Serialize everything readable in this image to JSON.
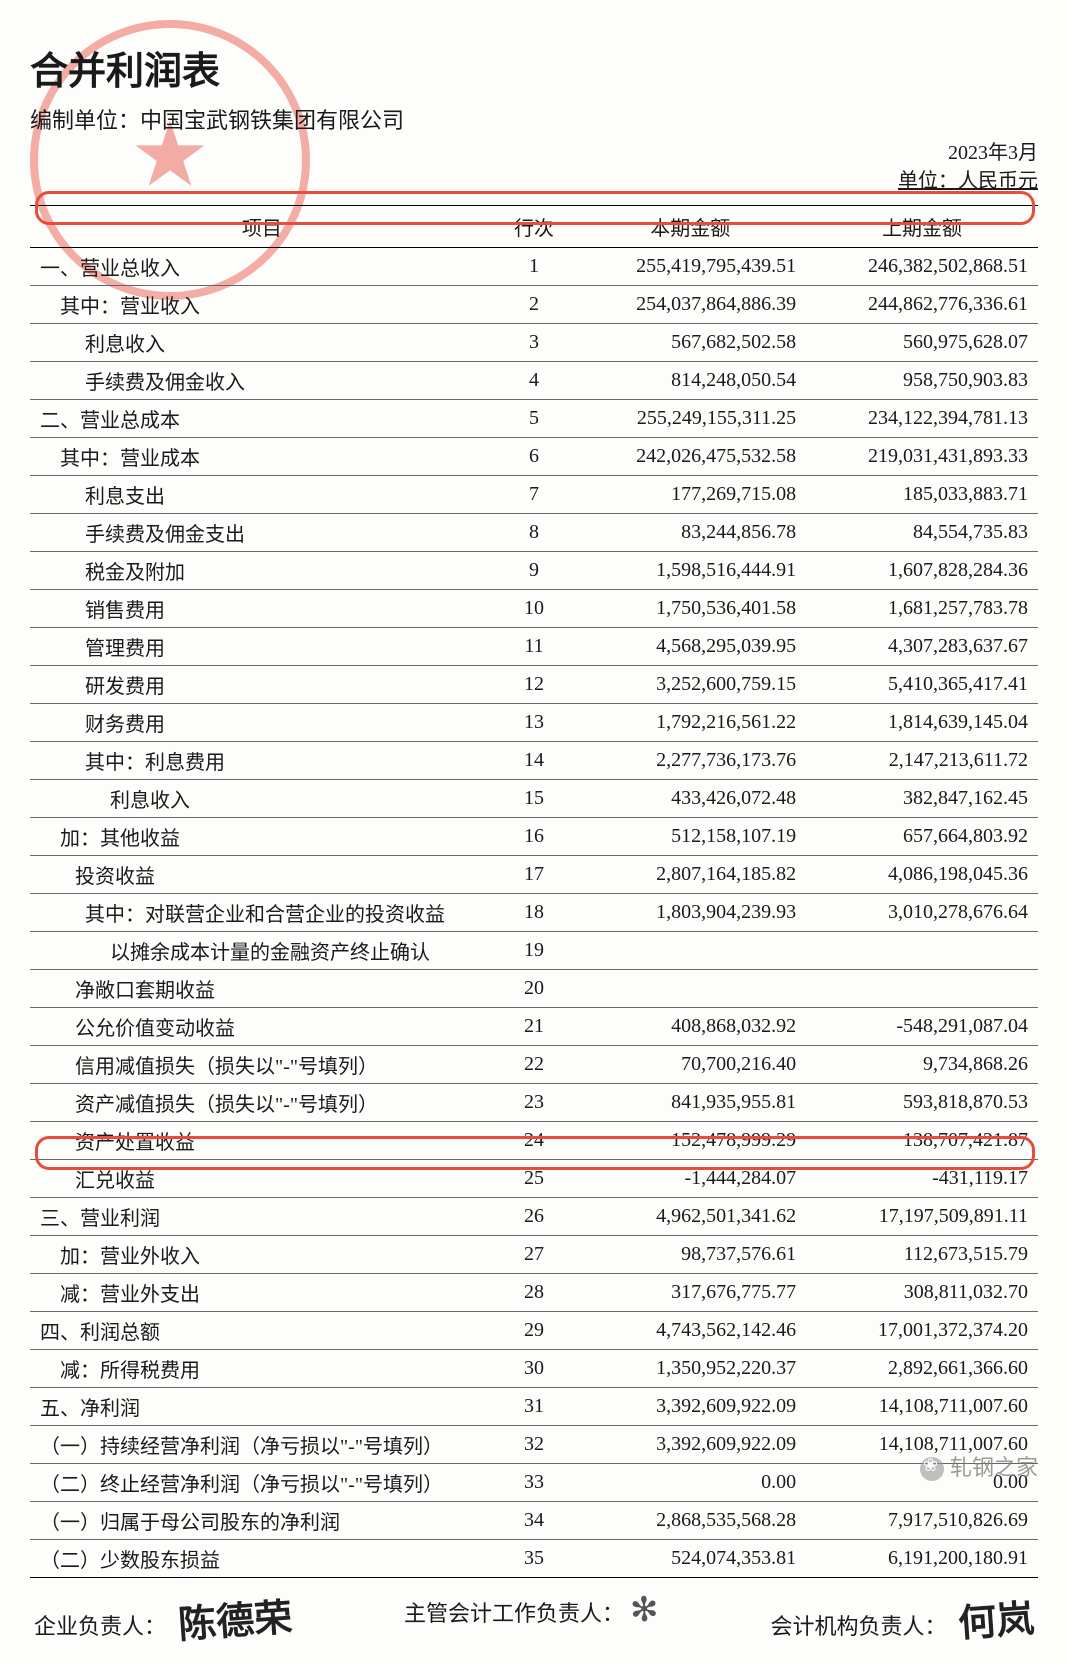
{
  "title": "合并利润表",
  "subtitle": "编制单位：中国宝武钢铁集团有限公司",
  "period": "2023年3月",
  "unit_label": "单位：人民币元",
  "columns": {
    "item": "项目",
    "row": "行次",
    "current": "本期金额",
    "prior": "上期金额"
  },
  "rows": [
    {
      "item": "一、营业总收入",
      "row": "1",
      "cur": "255,419,795,439.51",
      "prev": "246,382,502,868.51"
    },
    {
      "item": "    其中：营业收入",
      "row": "2",
      "cur": "254,037,864,886.39",
      "prev": "244,862,776,336.61"
    },
    {
      "item": "         利息收入",
      "row": "3",
      "cur": "567,682,502.58",
      "prev": "560,975,628.07"
    },
    {
      "item": "         手续费及佣金收入",
      "row": "4",
      "cur": "814,248,050.54",
      "prev": "958,750,903.83"
    },
    {
      "item": "二、营业总成本",
      "row": "5",
      "cur": "255,249,155,311.25",
      "prev": "234,122,394,781.13"
    },
    {
      "item": "    其中：营业成本",
      "row": "6",
      "cur": "242,026,475,532.58",
      "prev": "219,031,431,893.33"
    },
    {
      "item": "         利息支出",
      "row": "7",
      "cur": "177,269,715.08",
      "prev": "185,033,883.71"
    },
    {
      "item": "         手续费及佣金支出",
      "row": "8",
      "cur": "83,244,856.78",
      "prev": "84,554,735.83"
    },
    {
      "item": "         税金及附加",
      "row": "9",
      "cur": "1,598,516,444.91",
      "prev": "1,607,828,284.36"
    },
    {
      "item": "         销售费用",
      "row": "10",
      "cur": "1,750,536,401.58",
      "prev": "1,681,257,783.78"
    },
    {
      "item": "         管理费用",
      "row": "11",
      "cur": "4,568,295,039.95",
      "prev": "4,307,283,637.67"
    },
    {
      "item": "         研发费用",
      "row": "12",
      "cur": "3,252,600,759.15",
      "prev": "5,410,365,417.41"
    },
    {
      "item": "         财务费用",
      "row": "13",
      "cur": "1,792,216,561.22",
      "prev": "1,814,639,145.04"
    },
    {
      "item": "         其中：利息费用",
      "row": "14",
      "cur": "2,277,736,173.76",
      "prev": "2,147,213,611.72"
    },
    {
      "item": "              利息收入",
      "row": "15",
      "cur": "433,426,072.48",
      "prev": "382,847,162.45"
    },
    {
      "item": "    加：其他收益",
      "row": "16",
      "cur": "512,158,107.19",
      "prev": "657,664,803.92"
    },
    {
      "item": "       投资收益",
      "row": "17",
      "cur": "2,807,164,185.82",
      "prev": "4,086,198,045.36"
    },
    {
      "item": "         其中：对联营企业和合营企业的投资收益",
      "row": "18",
      "cur": "1,803,904,239.93",
      "prev": "3,010,278,676.64"
    },
    {
      "item": "              以摊余成本计量的金融资产终止确认",
      "row": "19",
      "cur": "",
      "prev": ""
    },
    {
      "item": "       净敞口套期收益",
      "row": "20",
      "cur": "",
      "prev": ""
    },
    {
      "item": "       公允价值变动收益",
      "row": "21",
      "cur": "408,868,032.92",
      "prev": "-548,291,087.04"
    },
    {
      "item": "       信用减值损失（损失以\"-\"号填列）",
      "row": "22",
      "cur": "70,700,216.40",
      "prev": "9,734,868.26"
    },
    {
      "item": "       资产减值损失（损失以\"-\"号填列）",
      "row": "23",
      "cur": "841,935,955.81",
      "prev": "593,818,870.53"
    },
    {
      "item": "       资产处置收益",
      "row": "24",
      "cur": "152,478,999.29",
      "prev": "138,707,421.87"
    },
    {
      "item": "       汇兑收益",
      "row": "25",
      "cur": "-1,444,284.07",
      "prev": "-431,119.17"
    },
    {
      "item": "三、营业利润",
      "row": "26",
      "cur": "4,962,501,341.62",
      "prev": "17,197,509,891.11"
    },
    {
      "item": "    加：营业外收入",
      "row": "27",
      "cur": "98,737,576.61",
      "prev": "112,673,515.79"
    },
    {
      "item": "    减：营业外支出",
      "row": "28",
      "cur": "317,676,775.77",
      "prev": "308,811,032.70"
    },
    {
      "item": "四、利润总额",
      "row": "29",
      "cur": "4,743,562,142.46",
      "prev": "17,001,372,374.20"
    },
    {
      "item": "    减：所得税费用",
      "row": "30",
      "cur": "1,350,952,220.37",
      "prev": "2,892,661,366.60"
    },
    {
      "item": "五、净利润",
      "row": "31",
      "cur": "3,392,609,922.09",
      "prev": "14,108,711,007.60"
    },
    {
      "item": "（一）持续经营净利润（净亏损以\"-\"号填列）",
      "row": "32",
      "cur": "3,392,609,922.09",
      "prev": "14,108,711,007.60"
    },
    {
      "item": "（二）终止经营净利润（净亏损以\"-\"号填列）",
      "row": "33",
      "cur": "0.00",
      "prev": "0.00"
    },
    {
      "item": "（一）归属于母公司股东的净利润",
      "row": "34",
      "cur": "2,868,535,568.28",
      "prev": "7,917,510,826.69"
    },
    {
      "item": "（二）少数股东损益",
      "row": "35",
      "cur": "524,074,353.81",
      "prev": "6,191,200,180.91"
    }
  ],
  "footer": {
    "label1": "企业负责人：",
    "label2": "主管会计工作负责人：",
    "label3": "会计机构负责人："
  },
  "watermark": "轧钢之家",
  "highlights": [
    {
      "row_index": 0
    },
    {
      "row_index": 31
    }
  ],
  "colors": {
    "stamp": "#e74c3c",
    "border": "#000000",
    "row_border": "#666666",
    "text": "#1a1a1a",
    "background": "#fdfdfb"
  },
  "fonts": {
    "title_family": "SimHei",
    "body_family": "SimSun",
    "title_size_pt": 28,
    "body_size_pt": 15
  }
}
